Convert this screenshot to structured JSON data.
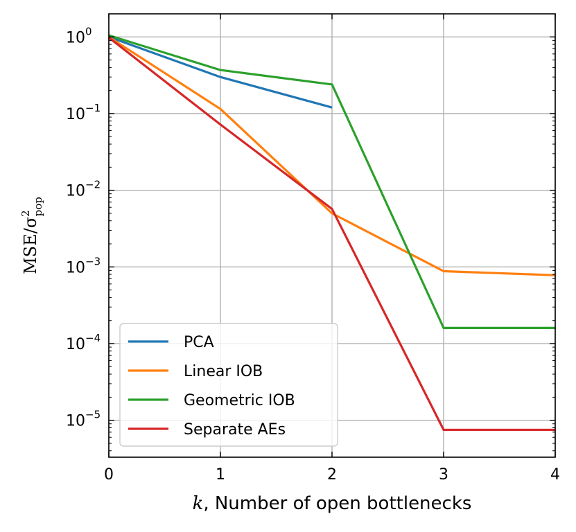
{
  "chart_data": {
    "type": "line",
    "title": "",
    "xlabel": "k, Number of open bottlenecks",
    "xlabel_var": "k",
    "xlabel_rest": ", Number of open bottlenecks",
    "ylabel": "MSE/σ²pop",
    "ylabel_main": "MSE/σ",
    "ylabel_sup": "2",
    "ylabel_sub": "pop",
    "xlim": [
      0,
      4
    ],
    "ylim": [
      3.3e-06,
      2.0
    ],
    "yscale": "log",
    "grid": true,
    "legend_position": "lower-left",
    "x_ticks": [
      0,
      1,
      2,
      3,
      4
    ],
    "y_ticks": [
      {
        "value": 1,
        "base": "10",
        "exp": "0"
      },
      {
        "value": 0.1,
        "base": "10",
        "exp": "−1"
      },
      {
        "value": 0.01,
        "base": "10",
        "exp": "−2"
      },
      {
        "value": 0.001,
        "base": "10",
        "exp": "−3"
      },
      {
        "value": 0.0001,
        "base": "10",
        "exp": "−4"
      },
      {
        "value": 1e-05,
        "base": "10",
        "exp": "−5"
      }
    ],
    "series": [
      {
        "name": "PCA",
        "color": "#1f77b4",
        "x": [
          0,
          1,
          2
        ],
        "y": [
          1.0,
          0.3,
          0.12
        ]
      },
      {
        "name": "Linear IOB",
        "color": "#ff7f0e",
        "x": [
          0,
          1,
          2,
          3,
          4
        ],
        "y": [
          1.0,
          0.115,
          0.005,
          0.00088,
          0.00078
        ]
      },
      {
        "name": "Geometric IOB",
        "color": "#2ca02c",
        "x": [
          0,
          1,
          2,
          3,
          4
        ],
        "y": [
          1.05,
          0.37,
          0.24,
          0.00016,
          0.00016
        ]
      },
      {
        "name": "Separate AEs",
        "color": "#d62728",
        "x": [
          0,
          1,
          2,
          3,
          4
        ],
        "y": [
          0.98,
          0.072,
          0.0057,
          7.5e-06,
          7.5e-06
        ]
      }
    ]
  }
}
